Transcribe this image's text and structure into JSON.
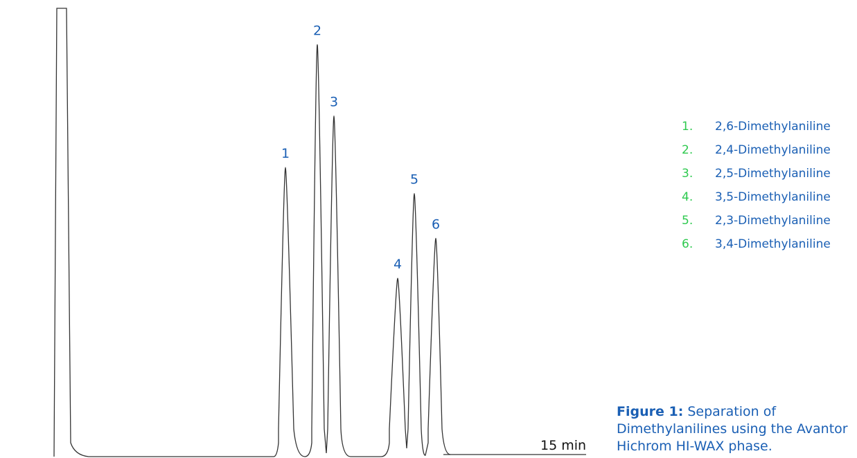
{
  "chart_data": {
    "type": "line",
    "title": "",
    "x_axis_end_label": "15 min",
    "colors": {
      "trace": "#333333",
      "peak_labels": "#1a5fb4",
      "legend_numbers": "#2ec94f",
      "legend_names": "#1a5fb4",
      "caption": "#1a5fb4"
    },
    "peaks": [
      {
        "label": "1",
        "relative_height": 0.645
      },
      {
        "label": "2",
        "relative_height": 0.919
      },
      {
        "label": "3",
        "relative_height": 0.76
      },
      {
        "label": "4",
        "relative_height": 0.398
      },
      {
        "label": "5",
        "relative_height": 0.587
      },
      {
        "label": "6",
        "relative_height": 0.487
      }
    ],
    "solvent_peak": {
      "relative_height": 1.0,
      "note": "off-scale"
    }
  },
  "legend": [
    {
      "num": "1.",
      "name": "2,6-Dimethylaniline"
    },
    {
      "num": "2.",
      "name": "2,4-Dimethylaniline"
    },
    {
      "num": "3.",
      "name": "2,5-Dimethylaniline"
    },
    {
      "num": "4.",
      "name": "3,5-Dimethylaniline"
    },
    {
      "num": "5.",
      "name": "2,3-Dimethylaniline"
    },
    {
      "num": "6.",
      "name": "3,4-Dimethylaniline"
    }
  ],
  "caption": {
    "bold": "Figure 1:",
    "line1": " Separation of",
    "line2": "Dimethylanilines using the Avantor",
    "line3": "Hichrom HI-WAX phase."
  }
}
